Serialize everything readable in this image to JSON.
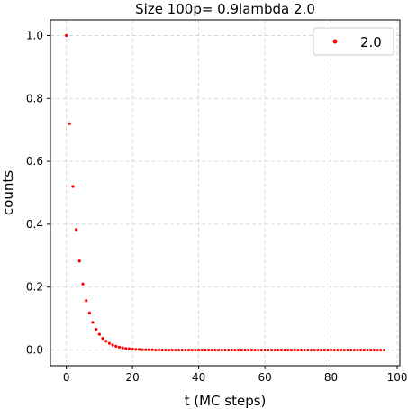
{
  "chart_data": {
    "type": "scatter",
    "title": "Size 100p= 0.9lambda 2.0",
    "xlabel": "t (MC steps)",
    "ylabel": "counts",
    "xlim": [
      -4.8,
      100.8
    ],
    "ylim": [
      -0.05,
      1.05
    ],
    "xticks": [
      0,
      20,
      40,
      60,
      80,
      100
    ],
    "yticks": [
      0.0,
      0.2,
      0.4,
      0.6,
      0.8,
      1.0
    ],
    "xtick_labels": [
      "0",
      "20",
      "40",
      "60",
      "80",
      "100"
    ],
    "ytick_labels": [
      "0.0",
      "0.2",
      "0.4",
      "0.6",
      "0.8",
      "1.0"
    ],
    "grid": true,
    "legend": "top-right",
    "series": [
      {
        "name": "2.0",
        "color": "#ff0000",
        "x": [
          0,
          1,
          2,
          3,
          4,
          5,
          6,
          7,
          8,
          9,
          10,
          11,
          12,
          13,
          14,
          15,
          16,
          17,
          18,
          19,
          20,
          21,
          22,
          23,
          24,
          25,
          26,
          27,
          28,
          29,
          30,
          31,
          32,
          33,
          34,
          35,
          36,
          37,
          38,
          39,
          40,
          41,
          42,
          43,
          44,
          45,
          46,
          47,
          48,
          49,
          50,
          51,
          52,
          53,
          54,
          55,
          56,
          57,
          58,
          59,
          60,
          61,
          62,
          63,
          64,
          65,
          66,
          67,
          68,
          69,
          70,
          71,
          72,
          73,
          74,
          75,
          76,
          77,
          78,
          79,
          80,
          81,
          82,
          83,
          84,
          85,
          86,
          87,
          88,
          89,
          90,
          91,
          92,
          93,
          94,
          95,
          96
        ],
        "y": [
          1.0,
          0.72,
          0.52,
          0.383,
          0.283,
          0.21,
          0.157,
          0.118,
          0.088,
          0.066,
          0.05,
          0.037,
          0.028,
          0.021,
          0.016,
          0.012,
          0.009,
          0.007,
          0.005,
          0.004,
          0.003,
          0.002,
          0.002,
          0.001,
          0.001,
          0.001,
          0.001,
          0,
          0,
          0,
          0,
          0,
          0,
          0,
          0,
          0,
          0,
          0,
          0,
          0,
          0,
          0,
          0,
          0,
          0,
          0,
          0,
          0,
          0,
          0,
          0,
          0,
          0,
          0,
          0,
          0,
          0,
          0,
          0,
          0,
          0,
          0,
          0,
          0,
          0,
          0,
          0,
          0,
          0,
          0,
          0,
          0,
          0,
          0,
          0,
          0,
          0,
          0,
          0,
          0,
          0,
          0,
          0,
          0,
          0,
          0,
          0,
          0,
          0,
          0,
          0,
          0,
          0,
          0,
          0,
          0,
          0
        ]
      }
    ]
  }
}
